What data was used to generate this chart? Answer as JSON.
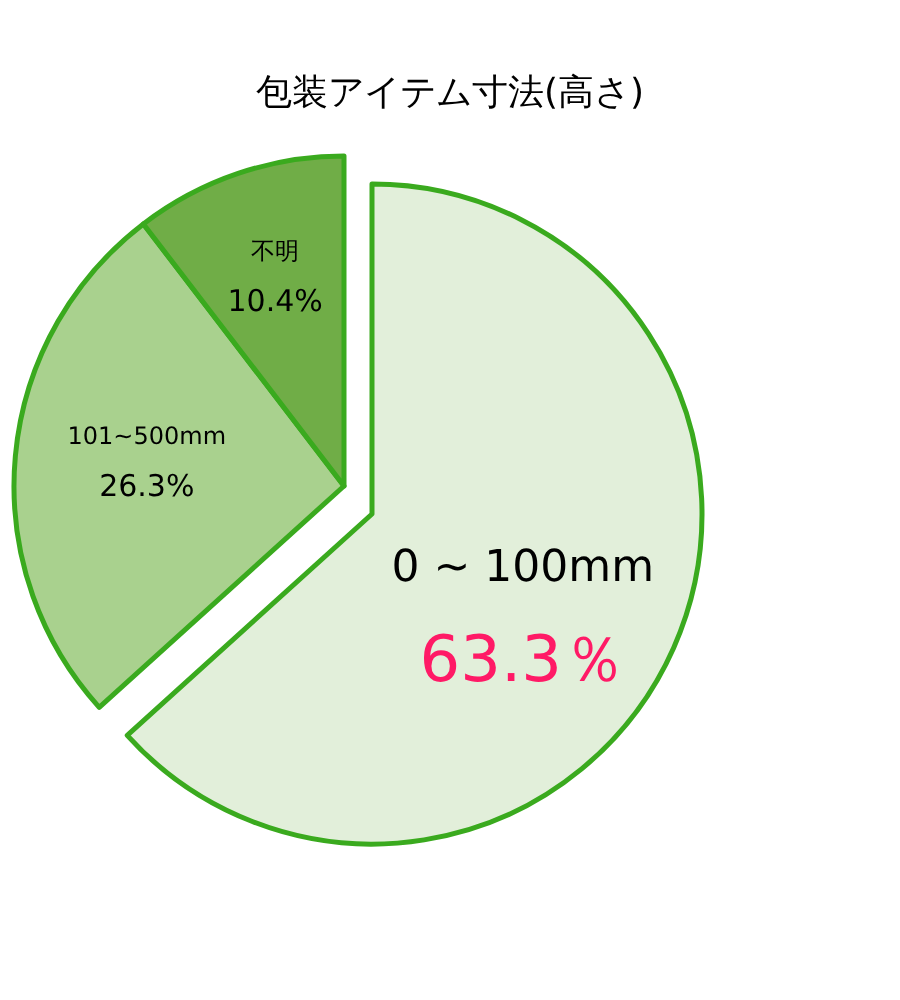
{
  "chart_data": {
    "type": "pie",
    "title": "包装アイテム寸法(高さ)",
    "categories": [
      "0 ~ 100mm",
      "101~500mm",
      "不明"
    ],
    "values": [
      63.3,
      26.3,
      10.4
    ],
    "colors": [
      "#e2efda",
      "#a9d18e",
      "#70ad47"
    ],
    "value_labels": [
      "63.3％",
      "26.3%",
      "10.4%"
    ]
  }
}
